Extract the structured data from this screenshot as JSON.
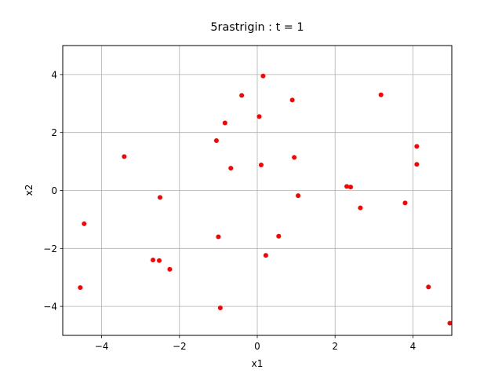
{
  "chart_data": {
    "type": "scatter",
    "title": "5rastrigin : t =  1",
    "xlabel": "x1",
    "ylabel": "x2",
    "xlim": [
      -5,
      5
    ],
    "ylim": [
      -5,
      5
    ],
    "xticks": [
      -4,
      -2,
      0,
      2,
      4
    ],
    "yticks": [
      -4,
      -2,
      0,
      2,
      4
    ],
    "grid": true,
    "marker_color": "#ff0000",
    "points": [
      {
        "x": 0.15,
        "y": 3.95
      },
      {
        "x": -0.4,
        "y": 3.28
      },
      {
        "x": 0.9,
        "y": 3.12
      },
      {
        "x": 3.18,
        "y": 3.3
      },
      {
        "x": 0.05,
        "y": 2.55
      },
      {
        "x": -0.83,
        "y": 2.33
      },
      {
        "x": -1.05,
        "y": 1.72
      },
      {
        "x": 4.1,
        "y": 1.52
      },
      {
        "x": -3.42,
        "y": 1.17
      },
      {
        "x": 0.95,
        "y": 1.14
      },
      {
        "x": 0.1,
        "y": 0.88
      },
      {
        "x": 4.1,
        "y": 0.9
      },
      {
        "x": -0.68,
        "y": 0.77
      },
      {
        "x": 2.3,
        "y": 0.14
      },
      {
        "x": 2.4,
        "y": 0.12
      },
      {
        "x": 1.05,
        "y": -0.18
      },
      {
        "x": -2.5,
        "y": -0.24
      },
      {
        "x": 3.8,
        "y": -0.43
      },
      {
        "x": 2.65,
        "y": -0.6
      },
      {
        "x": -4.45,
        "y": -1.15
      },
      {
        "x": 0.55,
        "y": -1.58
      },
      {
        "x": -1.0,
        "y": -1.6
      },
      {
        "x": 0.22,
        "y": -2.24
      },
      {
        "x": -2.68,
        "y": -2.4
      },
      {
        "x": -2.52,
        "y": -2.42
      },
      {
        "x": -2.25,
        "y": -2.72
      },
      {
        "x": -4.55,
        "y": -3.35
      },
      {
        "x": 4.4,
        "y": -3.33
      },
      {
        "x": -0.95,
        "y": -4.05
      },
      {
        "x": 4.95,
        "y": -4.58
      }
    ]
  }
}
